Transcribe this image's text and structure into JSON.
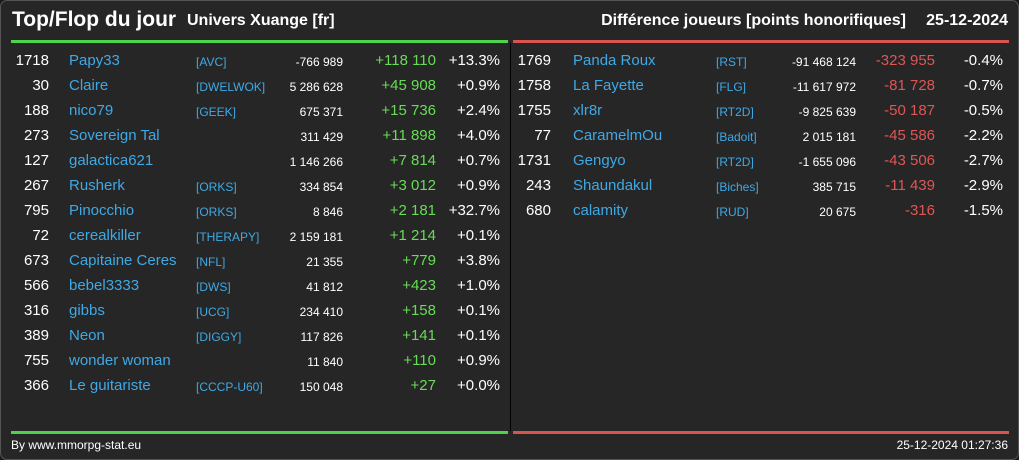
{
  "header": {
    "title": "Top/Flop du jour",
    "universe": "Univers Xuange [fr]",
    "metric": "Différence joueurs [points honorifiques]",
    "date": "25-12-2024"
  },
  "colors": {
    "gain": "#66dd55",
    "loss": "#e05555",
    "name": "#3fa9e6",
    "top_bar": "#4cd44c",
    "flop_bar": "#d9534f"
  },
  "top": [
    {
      "rank": "1718",
      "name": "Papy33",
      "alliance": "[AVC]",
      "points": "-766 989",
      "diff": "+118 110",
      "pct": "+13.3%"
    },
    {
      "rank": "30",
      "name": "Claire",
      "alliance": "[DWELWOK]",
      "points": "5 286 628",
      "diff": "+45 908",
      "pct": "+0.9%"
    },
    {
      "rank": "188",
      "name": "nico79",
      "alliance": "[GEEK]",
      "points": "675 371",
      "diff": "+15 736",
      "pct": "+2.4%"
    },
    {
      "rank": "273",
      "name": "Sovereign Tal",
      "alliance": "",
      "points": "311 429",
      "diff": "+11 898",
      "pct": "+4.0%"
    },
    {
      "rank": "127",
      "name": "galactica621",
      "alliance": "",
      "points": "1 146 266",
      "diff": "+7 814",
      "pct": "+0.7%"
    },
    {
      "rank": "267",
      "name": "Rusherk",
      "alliance": "[ORKS]",
      "points": "334 854",
      "diff": "+3 012",
      "pct": "+0.9%"
    },
    {
      "rank": "795",
      "name": "Pinocchio",
      "alliance": "[ORKS]",
      "points": "8 846",
      "diff": "+2 181",
      "pct": "+32.7%"
    },
    {
      "rank": "72",
      "name": "cerealkiller",
      "alliance": "[THERAPY]",
      "points": "2 159 181",
      "diff": "+1 214",
      "pct": "+0.1%"
    },
    {
      "rank": "673",
      "name": "Capitaine Ceres",
      "alliance": "[NFL]",
      "points": "21 355",
      "diff": "+779",
      "pct": "+3.8%"
    },
    {
      "rank": "566",
      "name": "bebel3333",
      "alliance": "[DWS]",
      "points": "41 812",
      "diff": "+423",
      "pct": "+1.0%"
    },
    {
      "rank": "316",
      "name": "gibbs",
      "alliance": "[UCG]",
      "points": "234 410",
      "diff": "+158",
      "pct": "+0.1%"
    },
    {
      "rank": "389",
      "name": "Neon",
      "alliance": "[DIGGY]",
      "points": "117 826",
      "diff": "+141",
      "pct": "+0.1%"
    },
    {
      "rank": "755",
      "name": "wonder woman",
      "alliance": "",
      "points": "11 840",
      "diff": "+110",
      "pct": "+0.9%"
    },
    {
      "rank": "366",
      "name": "Le guitariste",
      "alliance": "[CCCP-U60]",
      "points": "150 048",
      "diff": "+27",
      "pct": "+0.0%"
    }
  ],
  "flop": [
    {
      "rank": "1769",
      "name": "Panda Roux",
      "alliance": "[RST]",
      "points": "-91 468 124",
      "diff": "-323 955",
      "pct": "-0.4%"
    },
    {
      "rank": "1758",
      "name": "La Fayette",
      "alliance": "[FLG]",
      "points": "-11 617 972",
      "diff": "-81 728",
      "pct": "-0.7%"
    },
    {
      "rank": "1755",
      "name": "xlr8r",
      "alliance": "[RT2D]",
      "points": "-9 825 639",
      "diff": "-50 187",
      "pct": "-0.5%"
    },
    {
      "rank": "77",
      "name": "CaramelmOu",
      "alliance": "[Badoit]",
      "points": "2 015 181",
      "diff": "-45 586",
      "pct": "-2.2%"
    },
    {
      "rank": "1731",
      "name": "Gengyo",
      "alliance": "[RT2D]",
      "points": "-1 655 096",
      "diff": "-43 506",
      "pct": "-2.7%"
    },
    {
      "rank": "243",
      "name": "Shaundakul",
      "alliance": "[Biches]",
      "points": "385 715",
      "diff": "-11 439",
      "pct": "-2.9%"
    },
    {
      "rank": "680",
      "name": "calamity",
      "alliance": "[RUD]",
      "points": "20 675",
      "diff": "-316",
      "pct": "-1.5%"
    }
  ],
  "footer": {
    "source": "By www.mmorpg-stat.eu",
    "timestamp": "25-12-2024 01:27:36"
  }
}
